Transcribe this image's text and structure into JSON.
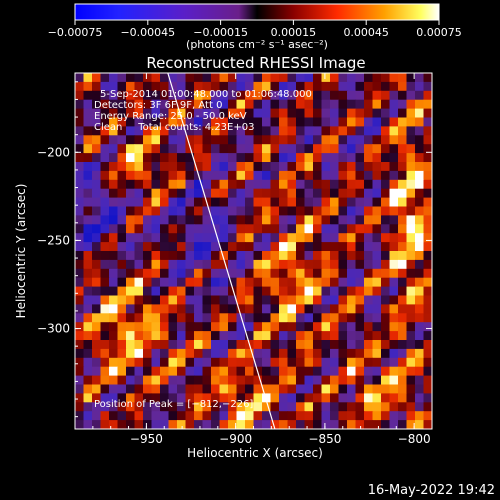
{
  "chart_data": {
    "type": "heatmap",
    "title": "Reconstructed RHESSI Image",
    "xlabel": "Heliocentric X (arcsec)",
    "ylabel": "Heliocentric Y (arcsec)",
    "xlim": [
      -990,
      -790
    ],
    "ylim": [
      -357,
      -155
    ],
    "xticks": [
      -950,
      -900,
      -850,
      -800
    ],
    "xtick_labels": [
      "−950",
      "−900",
      "−850",
      "−800"
    ],
    "yticks": [
      -200,
      -250,
      -300
    ],
    "ytick_labels": [
      "−200",
      "−250",
      "−300"
    ],
    "colorbar": {
      "range": [
        -0.00075,
        0.00075
      ],
      "ticks": [
        -0.00075,
        -0.00045,
        -0.00015,
        0.00015,
        0.00045,
        0.00075
      ],
      "tick_labels": [
        "−0.00075",
        "−0.00045",
        "−0.00015",
        "0.00015",
        "0.00045",
        "0.00075"
      ],
      "unit_label": "(photons cm⁻² s⁻¹ asec⁻²)"
    },
    "annotations": [
      "5-Sep-2014 01:00:48.000 to 01:06:48.000",
      "Detectors: 3F 6F 9F, Att 0",
      "Energy Range: 25.0 - 50.0 keV",
      "Clean     Total counts: 4.23E+03"
    ],
    "peak_label": "Position of Peak = [−812,−226]",
    "limb_line": {
      "x": [
        -938,
        -878
      ],
      "y": [
        -155,
        -357
      ]
    },
    "image_grid": {
      "rows": 40,
      "cols": 42
    }
  },
  "footer": {
    "date": "16-May-2022 19:42"
  }
}
